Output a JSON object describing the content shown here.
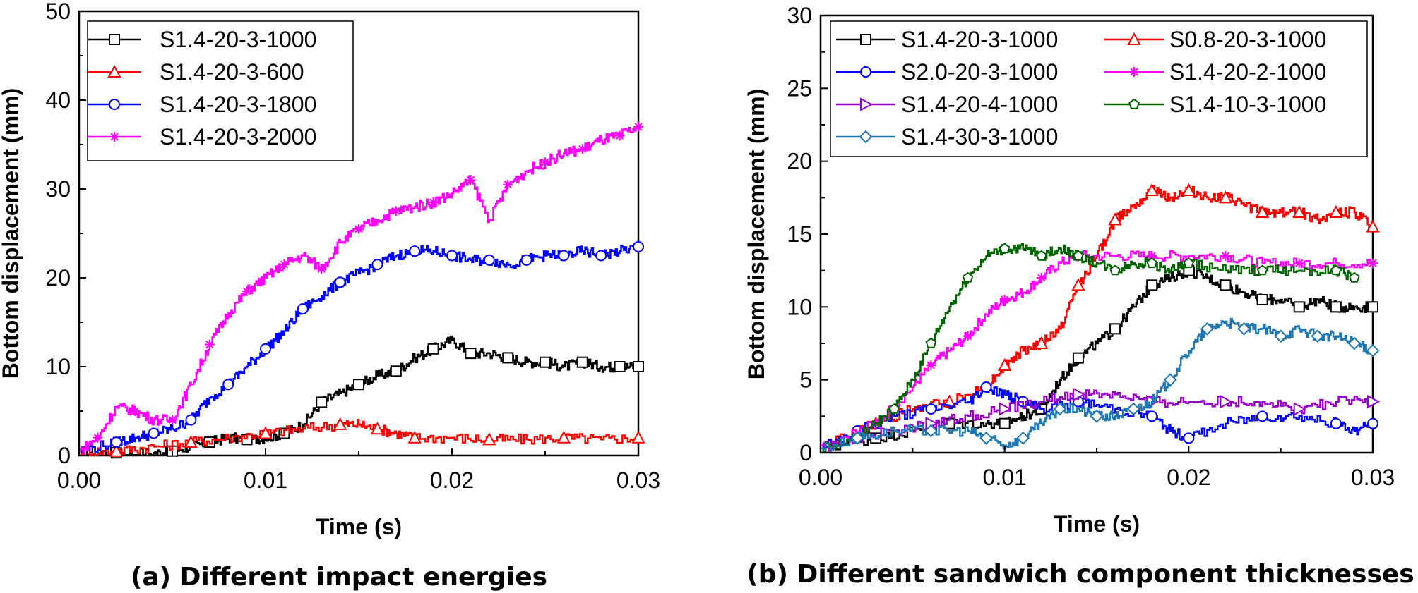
{
  "colors": {
    "black": "#000000",
    "red": "#ff0000",
    "blue": "#0000ff",
    "magenta": "#ff00ff",
    "purple": "#9900cc",
    "green": "#006400",
    "steel": "#1f78b4"
  },
  "chart_data": [
    {
      "type": "line",
      "caption": "(a) Different impact energies",
      "xlabel": "Time (s)",
      "ylabel": "Bottom displacement (mm)",
      "xlim": [
        0,
        0.03
      ],
      "ylim": [
        0,
        50
      ],
      "xticks": [
        0,
        0.01,
        0.02,
        0.03
      ],
      "xtick_labels": [
        "0.00",
        "0.01",
        "0.02",
        "0.03"
      ],
      "yticks": [
        0,
        10,
        20,
        30,
        40,
        50
      ],
      "ytick_labels": [
        "0",
        "10",
        "20",
        "30",
        "40",
        "50"
      ],
      "legend_position": "top-left",
      "series": [
        {
          "name": "S1.4-20-3-1000",
          "color": "#000000",
          "marker": "square",
          "x": [
            0,
            0.002,
            0.004,
            0.005,
            0.006,
            0.007,
            0.008,
            0.009,
            0.01,
            0.011,
            0.012,
            0.013,
            0.014,
            0.015,
            0.016,
            0.017,
            0.018,
            0.019,
            0.02,
            0.021,
            0.022,
            0.023,
            0.024,
            0.025,
            0.026,
            0.027,
            0.028,
            0.029,
            0.03
          ],
          "y": [
            0.5,
            0.3,
            0.3,
            0.5,
            1.0,
            1.5,
            2.0,
            1.8,
            2.0,
            2.5,
            3.5,
            6.0,
            7.0,
            8.0,
            9.0,
            9.5,
            11.0,
            12.0,
            13.0,
            11.5,
            11.5,
            11.0,
            10.5,
            10.5,
            10.0,
            10.5,
            10.0,
            10.0,
            10.0
          ]
        },
        {
          "name": "S1.4-20-3-600",
          "color": "#ff0000",
          "marker": "triangle",
          "x": [
            0,
            0.002,
            0.004,
            0.006,
            0.008,
            0.01,
            0.012,
            0.014,
            0.015,
            0.016,
            0.017,
            0.018,
            0.02,
            0.022,
            0.024,
            0.026,
            0.028,
            0.03
          ],
          "y": [
            0.5,
            0.5,
            1.0,
            1.5,
            2.0,
            2.5,
            3.0,
            3.5,
            3.5,
            3.0,
            2.5,
            2.0,
            2.0,
            1.8,
            1.8,
            2.0,
            1.8,
            2.0
          ]
        },
        {
          "name": "S1.4-20-3-1800",
          "color": "#0000ff",
          "marker": "circle",
          "x": [
            0,
            0.002,
            0.003,
            0.004,
            0.005,
            0.006,
            0.007,
            0.008,
            0.009,
            0.01,
            0.011,
            0.012,
            0.013,
            0.014,
            0.015,
            0.016,
            0.017,
            0.018,
            0.019,
            0.02,
            0.021,
            0.022,
            0.023,
            0.024,
            0.025,
            0.026,
            0.027,
            0.028,
            0.029,
            0.03
          ],
          "y": [
            0.5,
            1.5,
            2.0,
            2.5,
            3.0,
            4.0,
            6.5,
            8.0,
            10.0,
            12.0,
            14.0,
            16.5,
            18.0,
            19.5,
            20.5,
            21.5,
            22.5,
            23.0,
            23.0,
            22.5,
            22.0,
            22.0,
            21.5,
            22.0,
            22.5,
            22.5,
            23.0,
            22.5,
            23.0,
            23.5
          ]
        },
        {
          "name": "S1.4-20-3-2000",
          "color": "#ff00ff",
          "marker": "asterisk",
          "x": [
            0,
            0.001,
            0.002,
            0.003,
            0.004,
            0.005,
            0.006,
            0.007,
            0.008,
            0.009,
            0.01,
            0.011,
            0.012,
            0.013,
            0.014,
            0.015,
            0.016,
            0.017,
            0.018,
            0.019,
            0.02,
            0.021,
            0.022,
            0.023,
            0.024,
            0.025,
            0.026,
            0.027,
            0.028,
            0.029,
            0.03
          ],
          "y": [
            0.5,
            2.0,
            5.5,
            5.0,
            4.0,
            4.0,
            8.0,
            12.5,
            16.0,
            18.5,
            20.0,
            21.5,
            22.5,
            21.0,
            24.0,
            25.5,
            26.5,
            27.5,
            28.0,
            28.5,
            29.5,
            31.0,
            26.5,
            30.5,
            32.0,
            33.0,
            34.0,
            34.5,
            35.5,
            36.0,
            37.0
          ]
        }
      ]
    },
    {
      "type": "line",
      "caption": "(b) Different sandwich component thicknesses",
      "xlabel": "Time (s)",
      "ylabel": "Bottom displacement (mm)",
      "xlim": [
        0,
        0.03
      ],
      "ylim": [
        0,
        30
      ],
      "xticks": [
        0,
        0.01,
        0.02,
        0.03
      ],
      "xtick_labels": [
        "0.00",
        "0.01",
        "0.02",
        "0.03"
      ],
      "yticks": [
        0,
        5,
        10,
        15,
        20,
        25,
        30
      ],
      "ytick_labels": [
        "0",
        "5",
        "10",
        "15",
        "20",
        "25",
        "30"
      ],
      "legend_position": "top",
      "series": [
        {
          "name": "S1.4-20-3-1000",
          "color": "#000000",
          "marker": "square",
          "x": [
            0,
            0.003,
            0.005,
            0.007,
            0.009,
            0.01,
            0.011,
            0.012,
            0.013,
            0.014,
            0.015,
            0.016,
            0.017,
            0.018,
            0.019,
            0.02,
            0.021,
            0.022,
            0.023,
            0.024,
            0.025,
            0.026,
            0.027,
            0.028,
            0.029,
            0.03
          ],
          "y": [
            0.3,
            1.0,
            1.5,
            2.0,
            2.0,
            2.0,
            2.5,
            3.0,
            5.0,
            6.5,
            7.5,
            8.5,
            10.0,
            11.5,
            12.0,
            12.5,
            12.0,
            11.5,
            11.0,
            10.5,
            10.5,
            10.0,
            10.5,
            10.0,
            10.0,
            10.0
          ]
        },
        {
          "name": "S0.8-20-3-1000",
          "color": "#ff0000",
          "marker": "triangle",
          "x": [
            0,
            0.003,
            0.005,
            0.007,
            0.009,
            0.01,
            0.011,
            0.012,
            0.013,
            0.014,
            0.015,
            0.016,
            0.017,
            0.018,
            0.019,
            0.02,
            0.021,
            0.022,
            0.023,
            0.024,
            0.025,
            0.026,
            0.027,
            0.028,
            0.029,
            0.03
          ],
          "y": [
            0.5,
            2.0,
            3.0,
            3.5,
            4.5,
            6.0,
            7.0,
            7.5,
            8.5,
            11.5,
            13.5,
            16.0,
            17.0,
            18.0,
            17.5,
            18.0,
            17.5,
            17.5,
            17.0,
            16.5,
            16.5,
            16.5,
            16.0,
            16.5,
            16.5,
            15.5
          ]
        },
        {
          "name": "S2.0-20-3-1000",
          "color": "#0000ff",
          "marker": "circle",
          "x": [
            0,
            0.002,
            0.004,
            0.006,
            0.008,
            0.009,
            0.01,
            0.011,
            0.012,
            0.014,
            0.016,
            0.018,
            0.019,
            0.02,
            0.022,
            0.024,
            0.026,
            0.028,
            0.029,
            0.03
          ],
          "y": [
            0.5,
            1.5,
            2.5,
            3.0,
            3.5,
            4.5,
            4.0,
            3.5,
            3.0,
            3.5,
            3.0,
            2.5,
            1.5,
            1.0,
            2.0,
            2.5,
            2.5,
            2.0,
            1.5,
            2.0
          ]
        },
        {
          "name": "S1.4-20-2-1000",
          "color": "#ff00ff",
          "marker": "asterisk",
          "x": [
            0,
            0.003,
            0.005,
            0.006,
            0.007,
            0.008,
            0.009,
            0.01,
            0.011,
            0.012,
            0.013,
            0.014,
            0.016,
            0.018,
            0.02,
            0.022,
            0.024,
            0.026,
            0.028,
            0.03
          ],
          "y": [
            0.5,
            2.0,
            4.5,
            6.0,
            7.0,
            8.0,
            9.5,
            10.5,
            11.0,
            12.0,
            13.0,
            13.5,
            13.5,
            13.5,
            13.5,
            13.5,
            13.0,
            13.0,
            13.0,
            13.0
          ]
        },
        {
          "name": "S1.4-20-4-1000",
          "color": "#9900cc",
          "marker": "triangle-right",
          "x": [
            0,
            0.002,
            0.004,
            0.006,
            0.008,
            0.01,
            0.012,
            0.014,
            0.016,
            0.018,
            0.02,
            0.022,
            0.024,
            0.026,
            0.028,
            0.03
          ],
          "y": [
            0.3,
            1.0,
            1.5,
            2.0,
            2.5,
            3.0,
            3.5,
            4.0,
            4.0,
            3.5,
            3.5,
            3.5,
            3.5,
            3.0,
            3.5,
            3.5
          ]
        },
        {
          "name": "S1.4-10-3-1000",
          "color": "#006400",
          "marker": "pentagon",
          "x": [
            0,
            0.002,
            0.003,
            0.004,
            0.005,
            0.006,
            0.007,
            0.008,
            0.009,
            0.01,
            0.011,
            0.012,
            0.013,
            0.014,
            0.015,
            0.016,
            0.017,
            0.018,
            0.019,
            0.02,
            0.022,
            0.024,
            0.026,
            0.028,
            0.029
          ],
          "y": [
            0.3,
            1.0,
            2.0,
            3.0,
            5.0,
            7.5,
            10.0,
            12.0,
            13.5,
            14.0,
            14.0,
            13.5,
            14.0,
            13.5,
            13.0,
            12.5,
            13.0,
            13.0,
            12.5,
            13.0,
            12.5,
            12.5,
            12.5,
            12.5,
            12.0
          ]
        },
        {
          "name": "S1.4-30-3-1000",
          "color": "#1f78b4",
          "marker": "diamond",
          "x": [
            0,
            0.002,
            0.004,
            0.006,
            0.008,
            0.009,
            0.01,
            0.011,
            0.012,
            0.013,
            0.014,
            0.015,
            0.016,
            0.017,
            0.018,
            0.019,
            0.02,
            0.021,
            0.022,
            0.023,
            0.024,
            0.025,
            0.026,
            0.027,
            0.028,
            0.029,
            0.03
          ],
          "y": [
            0.3,
            1.0,
            1.5,
            1.5,
            1.5,
            1.0,
            0.5,
            1.0,
            2.0,
            3.0,
            3.0,
            2.5,
            2.5,
            3.0,
            3.5,
            5.0,
            7.0,
            8.5,
            9.0,
            8.5,
            8.5,
            8.0,
            8.5,
            8.0,
            8.0,
            7.5,
            7.0
          ]
        }
      ]
    }
  ]
}
